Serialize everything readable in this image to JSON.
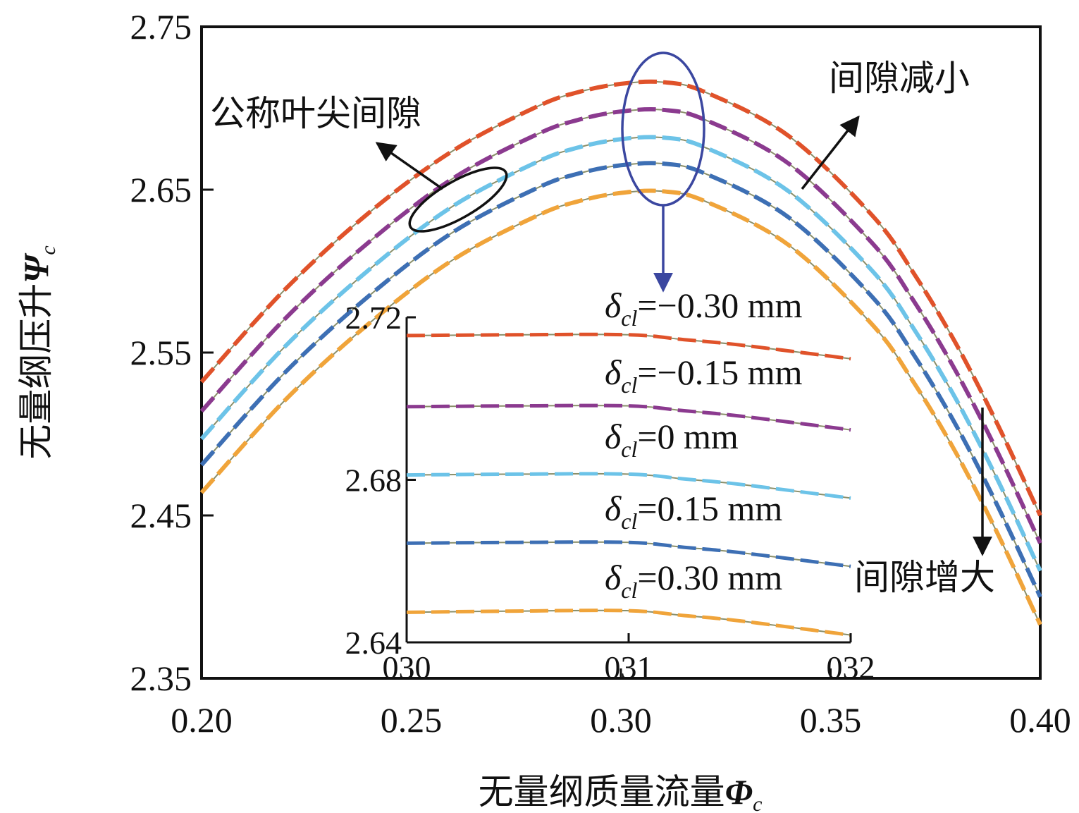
{
  "chart_data": [
    {
      "type": "line",
      "xlabel": "无量纲质量流量",
      "xlabel_symbol": "Φ",
      "xlabel_sub": "c",
      "ylabel": "无量纲压升",
      "ylabel_symbol": "Ψ",
      "ylabel_sub": "c",
      "xlim": [
        0.2,
        0.4
      ],
      "ylim": [
        2.35,
        2.75
      ],
      "xticks": [
        "0.20",
        "0.25",
        "0.30",
        "0.35",
        "0.40"
      ],
      "yticks": [
        "2.35",
        "2.45",
        "2.55",
        "2.65",
        "2.75"
      ],
      "x": [
        0.2,
        0.22,
        0.24,
        0.26,
        0.28,
        0.29,
        0.3,
        0.31,
        0.32,
        0.34,
        0.36,
        0.37,
        0.38,
        0.39,
        0.4
      ],
      "series": [
        {
          "name": "δcl=−0.30 mm",
          "color": "#e0522a",
          "values": [
            2.532,
            2.589,
            2.636,
            2.674,
            2.701,
            2.71,
            2.715,
            2.716,
            2.71,
            2.683,
            2.634,
            2.598,
            2.555,
            2.505,
            2.45
          ]
        },
        {
          "name": "δcl=−0.15 mm",
          "color": "#8b3a8f",
          "values": [
            2.514,
            2.571,
            2.618,
            2.657,
            2.684,
            2.693,
            2.698,
            2.699,
            2.693,
            2.666,
            2.617,
            2.581,
            2.538,
            2.488,
            2.433
          ]
        },
        {
          "name": "δcl=0 mm",
          "color": "#6cc3e8",
          "values": [
            2.497,
            2.554,
            2.601,
            2.64,
            2.667,
            2.676,
            2.681,
            2.682,
            2.676,
            2.649,
            2.6,
            2.564,
            2.521,
            2.471,
            2.416
          ]
        },
        {
          "name": "δcl=0.15 mm",
          "color": "#3d6fb4",
          "values": [
            2.481,
            2.538,
            2.585,
            2.624,
            2.651,
            2.66,
            2.665,
            2.666,
            2.66,
            2.633,
            2.584,
            2.548,
            2.505,
            2.455,
            2.4
          ]
        },
        {
          "name": "δcl=0.30 mm",
          "color": "#f0a43a",
          "values": [
            2.464,
            2.521,
            2.568,
            2.607,
            2.634,
            2.643,
            2.648,
            2.649,
            2.643,
            2.616,
            2.567,
            2.531,
            2.488,
            2.438,
            2.383
          ]
        }
      ],
      "annotations": {
        "nominal": "公称叶尖间隙",
        "decrease": "间隙减小",
        "increase": "间隙增大"
      }
    },
    {
      "type": "line",
      "role": "inset",
      "xlim": [
        0.3,
        0.32
      ],
      "ylim": [
        2.64,
        2.72
      ],
      "xticks": [
        "030",
        "031",
        "032"
      ],
      "yticks": [
        "2.64",
        "2.68",
        "2.72"
      ],
      "x": [
        0.3,
        0.305,
        0.31,
        0.3125,
        0.315,
        0.32
      ],
      "series": [
        {
          "name": "δcl=−0.30 mm",
          "color": "#e0522a",
          "values": [
            2.7155,
            2.7157,
            2.7157,
            2.7145,
            2.7132,
            2.7098
          ]
        },
        {
          "name": "δcl=−0.15 mm",
          "color": "#8b3a8f",
          "values": [
            2.698,
            2.6982,
            2.6982,
            2.697,
            2.6957,
            2.6923
          ]
        },
        {
          "name": "δcl=0 mm",
          "color": "#6cc3e8",
          "values": [
            2.6812,
            2.6814,
            2.6814,
            2.6802,
            2.6789,
            2.6755
          ]
        },
        {
          "name": "δcl=0.15 mm",
          "color": "#3d6fb4",
          "values": [
            2.6644,
            2.6646,
            2.6646,
            2.6634,
            2.6621,
            2.6587
          ]
        },
        {
          "name": "δcl=0.30 mm",
          "color": "#f0a43a",
          "values": [
            2.6474,
            2.6477,
            2.6478,
            2.6466,
            2.6453,
            2.6418
          ]
        }
      ],
      "legend": [
        {
          "delta": "δ",
          "sub": "cl",
          "value": "=−0.30 mm"
        },
        {
          "delta": "δ",
          "sub": "cl",
          "value": "=−0.15 mm"
        },
        {
          "delta": "δ",
          "sub": "cl",
          "value": "=0 mm"
        },
        {
          "delta": "δ",
          "sub": "cl",
          "value": "=0.15 mm"
        },
        {
          "delta": "δ",
          "sub": "cl",
          "value": "=0.30 mm"
        }
      ]
    }
  ]
}
